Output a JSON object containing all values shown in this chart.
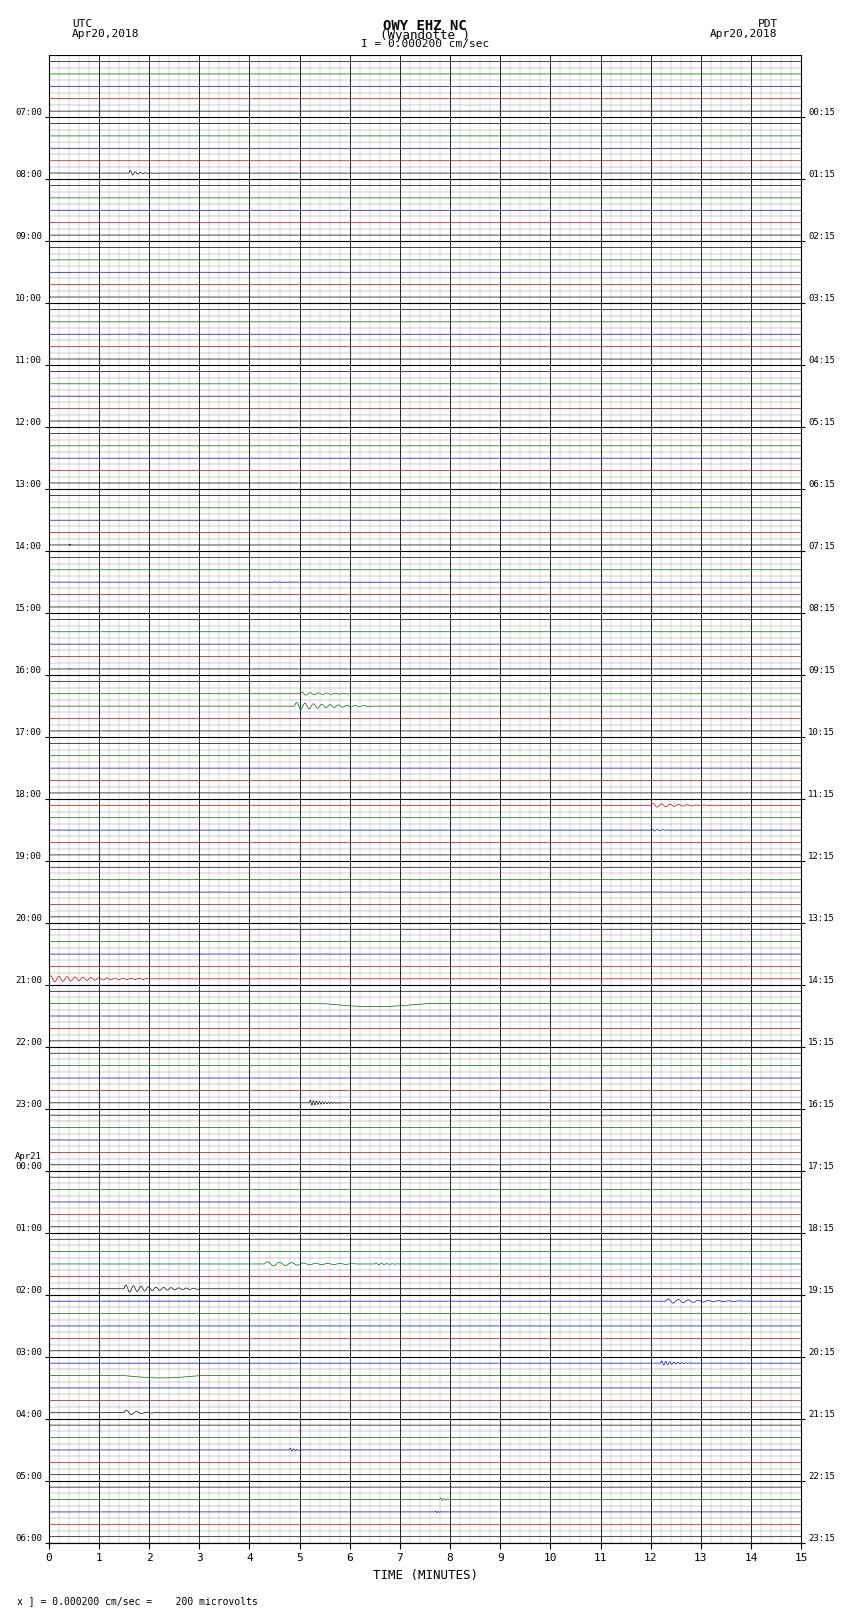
{
  "title_line1": "OWY EHZ NC",
  "title_line2": "(Wyandotte )",
  "scale_text": "I = 0.000200 cm/sec",
  "left_label1": "UTC",
  "left_label2": "Apr20,2018",
  "right_label1": "PDT",
  "right_label2": "Apr20,2018",
  "xlabel": "TIME (MINUTES)",
  "bottom_note": "x ] = 0.000200 cm/sec =    200 microvolts",
  "utc_times": [
    "07:00",
    "08:00",
    "09:00",
    "10:00",
    "11:00",
    "12:00",
    "13:00",
    "14:00",
    "15:00",
    "16:00",
    "17:00",
    "18:00",
    "19:00",
    "20:00",
    "21:00",
    "22:00",
    "23:00",
    "Apr21\n00:00",
    "01:00",
    "02:00",
    "03:00",
    "04:00",
    "05:00",
    "06:00"
  ],
  "pdt_times": [
    "00:15",
    "01:15",
    "02:15",
    "03:15",
    "04:15",
    "05:15",
    "06:15",
    "07:15",
    "08:15",
    "09:15",
    "10:15",
    "11:15",
    "12:15",
    "13:15",
    "14:15",
    "15:15",
    "16:15",
    "17:15",
    "18:15",
    "19:15",
    "20:15",
    "21:15",
    "22:15",
    "23:15"
  ],
  "n_rows": 24,
  "n_minutes": 15,
  "sub_traces": 5,
  "bg_color": "#ffffff",
  "grid_color_major": "#000000",
  "grid_color_minor": "#888888",
  "colors": {
    "black": "#000000",
    "red": "#cc0000",
    "blue": "#0000cc",
    "green": "#006600",
    "dkred": "#aa0000"
  }
}
